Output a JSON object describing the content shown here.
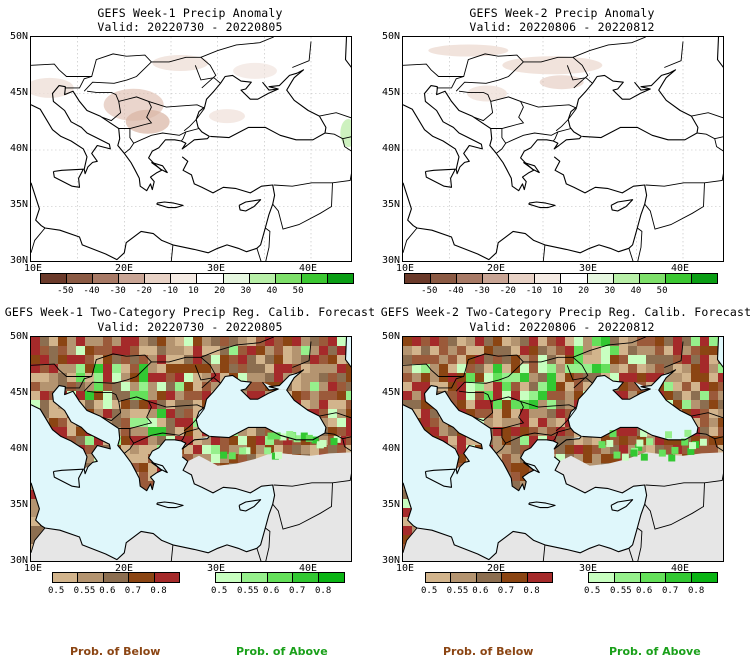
{
  "panels": {
    "w1_anom": {
      "title": "GEFS Week-1 Precip Anomaly",
      "valid": "Valid: 20220730 - 20220805"
    },
    "w2_anom": {
      "title": "GEFS Week-2 Precip Anomaly",
      "valid": "Valid: 20220806 - 20220812"
    },
    "w1_prob": {
      "title": "GEFS Week-1 Two-Category Precip Reg. Calib. Forecast",
      "valid": "Valid: 20220730 - 20220805"
    },
    "w2_prob": {
      "title": "GEFS Week-2 Two-Category Precip Reg. Calib. Forecast",
      "valid": "Valid: 20220806 - 20220812"
    }
  },
  "axes": {
    "lat_labels": [
      "50N",
      "45N",
      "40N",
      "35N",
      "30N"
    ],
    "lon_labels": [
      "10E",
      "20E",
      "30E",
      "40E"
    ]
  },
  "anomaly_colorbar": {
    "labels": [
      "-50",
      "-40",
      "-30",
      "-20",
      "-10",
      "10",
      "20",
      "30",
      "40",
      "50"
    ],
    "colors": [
      "#6b3a2a",
      "#8b5a44",
      "#a87a66",
      "#c9a595",
      "#e8d2c6",
      "#f5ebe4",
      "#ffffff",
      "#e6f7e0",
      "#b8f0a8",
      "#7ee06a",
      "#3cc832",
      "#0a9e14"
    ]
  },
  "prob_below": {
    "labels": [
      "0.5",
      "0.55",
      "0.6",
      "0.7",
      "0.8"
    ],
    "colors": [
      "#d2b48c",
      "#b49470",
      "#8c6e50",
      "#8b4513",
      "#a52a2a"
    ],
    "caption": "Prob. of Below",
    "caption_color": "#8b4513"
  },
  "prob_above": {
    "labels": [
      "0.5",
      "0.55",
      "0.6",
      "0.7",
      "0.8"
    ],
    "colors": [
      "#c8ffc0",
      "#96f08c",
      "#64e05a",
      "#32c832",
      "#0ab414"
    ],
    "caption": "Prob. of Above",
    "caption_color": "#1aa01a"
  },
  "colors": {
    "sea": "#dff7fb",
    "land_gray": "#e6e6e6",
    "coast": "#000000"
  }
}
